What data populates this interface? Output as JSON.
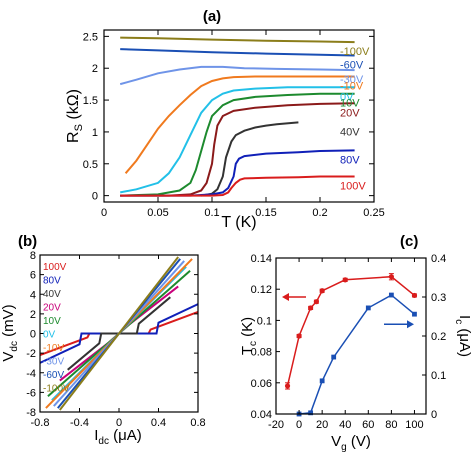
{
  "chart_data": [
    {
      "panel_label": "(a)",
      "type": "line",
      "xlabel": "T (K)",
      "ylabel": "R",
      "ylabel_sub": "S",
      "ylabel_unit": " (kΩ)",
      "xlim": [
        0,
        0.25
      ],
      "ylim": [
        -0.1,
        2.6
      ],
      "xticks": [
        "0",
        "0.05",
        "0.1",
        "0.15",
        "0.2",
        "0.25"
      ],
      "xtick_values": [
        0,
        0.05,
        0.1,
        0.15,
        0.2,
        0.25
      ],
      "yticks": [
        "0",
        "0.5",
        "1",
        "1.5",
        "2",
        "2.5"
      ],
      "ytick_values": [
        0,
        0.5,
        1,
        1.5,
        2,
        2.5
      ],
      "series": [
        {
          "name": "-100V",
          "color": "#8B7D1A",
          "x": [
            0.015,
            0.05,
            0.1,
            0.15,
            0.2,
            0.232
          ],
          "y": [
            2.48,
            2.47,
            2.45,
            2.43,
            2.42,
            2.41
          ]
        },
        {
          "name": "-60V",
          "color": "#1a4fb4",
          "x": [
            0.015,
            0.05,
            0.1,
            0.15,
            0.2,
            0.232
          ],
          "y": [
            2.3,
            2.28,
            2.25,
            2.23,
            2.21,
            2.2
          ]
        },
        {
          "name": "-30V",
          "color": "#6f94e8",
          "x": [
            0.015,
            0.03,
            0.05,
            0.07,
            0.09,
            0.11,
            0.13,
            0.16,
            0.2,
            0.232
          ],
          "y": [
            1.75,
            1.82,
            1.92,
            1.98,
            2.02,
            2.02,
            2.0,
            1.99,
            1.98,
            1.97
          ]
        },
        {
          "name": "-10V",
          "color": "#f07a1e",
          "x": [
            0.02,
            0.03,
            0.04,
            0.05,
            0.06,
            0.07,
            0.08,
            0.09,
            0.1,
            0.11,
            0.12,
            0.14,
            0.17,
            0.2,
            0.232
          ],
          "y": [
            0.35,
            0.55,
            0.8,
            1.05,
            1.25,
            1.42,
            1.58,
            1.72,
            1.8,
            1.84,
            1.86,
            1.87,
            1.87,
            1.87,
            1.87
          ]
        },
        {
          "name": "0V",
          "color": "#22c0e8",
          "x": [
            0.015,
            0.03,
            0.05,
            0.06,
            0.07,
            0.08,
            0.09,
            0.1,
            0.11,
            0.12,
            0.14,
            0.17,
            0.2,
            0.232
          ],
          "y": [
            0.05,
            0.1,
            0.2,
            0.35,
            0.6,
            0.95,
            1.3,
            1.5,
            1.6,
            1.65,
            1.68,
            1.7,
            1.7,
            1.7
          ]
        },
        {
          "name": "10V",
          "color": "#1d8a2e",
          "x": [
            0.015,
            0.05,
            0.07,
            0.08,
            0.085,
            0.09,
            0.095,
            0.1,
            0.11,
            0.12,
            0.14,
            0.17,
            0.2,
            0.232
          ],
          "y": [
            0.0,
            0.02,
            0.08,
            0.2,
            0.4,
            0.7,
            1.0,
            1.25,
            1.42,
            1.5,
            1.55,
            1.58,
            1.6,
            1.6
          ]
        },
        {
          "name": "20V",
          "color": "#8b1a1a",
          "x": [
            0.015,
            0.06,
            0.08,
            0.09,
            0.095,
            0.1,
            0.102,
            0.105,
            0.11,
            0.12,
            0.14,
            0.17,
            0.2,
            0.232
          ],
          "y": [
            0.0,
            0.0,
            0.02,
            0.08,
            0.2,
            0.5,
            0.8,
            1.1,
            1.25,
            1.33,
            1.38,
            1.42,
            1.44,
            1.45
          ]
        },
        {
          "name": "40V",
          "color": "#333333",
          "x": [
            0.09,
            0.1,
            0.105,
            0.11,
            0.113,
            0.118,
            0.122,
            0.13,
            0.14,
            0.15,
            0.16,
            0.18
          ],
          "y": [
            0.0,
            0.03,
            0.1,
            0.3,
            0.6,
            0.85,
            0.95,
            1.02,
            1.07,
            1.1,
            1.12,
            1.15
          ]
        },
        {
          "name": "80V",
          "color": "#1020b8",
          "x": [
            0.015,
            0.08,
            0.1,
            0.11,
            0.115,
            0.12,
            0.122,
            0.125,
            0.13,
            0.15,
            0.18,
            0.2,
            0.232
          ],
          "y": [
            0.0,
            0.0,
            0.02,
            0.05,
            0.12,
            0.3,
            0.5,
            0.58,
            0.62,
            0.66,
            0.68,
            0.7,
            0.71
          ]
        },
        {
          "name": "100V",
          "color": "#d91c1c",
          "x": [
            0.015,
            0.1,
            0.11,
            0.115,
            0.118,
            0.122,
            0.126,
            0.13,
            0.15,
            0.18,
            0.2,
            0.232
          ],
          "y": [
            0.0,
            0.0,
            0.01,
            0.05,
            0.12,
            0.2,
            0.25,
            0.27,
            0.28,
            0.29,
            0.3,
            0.3
          ]
        }
      ]
    },
    {
      "panel_label": "(b)",
      "type": "line",
      "xlabel": "I",
      "xlabel_sub": "dc",
      "xlabel_unit": " (μA)",
      "ylabel": "V",
      "ylabel_sub": "dc",
      "ylabel_unit": " (mV)",
      "xlim": [
        -0.8,
        0.8
      ],
      "ylim": [
        -8,
        8
      ],
      "xticks": [
        "-0.8",
        "-0.4",
        "0",
        "0.4",
        "0.8"
      ],
      "xtick_values": [
        -0.8,
        -0.4,
        0,
        0.4,
        0.8
      ],
      "yticks": [
        "-8",
        "-6",
        "-4",
        "-2",
        "0",
        "2",
        "4",
        "6",
        "8"
      ],
      "ytick_values": [
        -8,
        -6,
        -4,
        -2,
        0,
        2,
        4,
        6,
        8
      ],
      "legend": [
        {
          "label": "100V",
          "color": "#d91c1c"
        },
        {
          "label": "80V",
          "color": "#1020b8"
        },
        {
          "label": "40V",
          "color": "#333333"
        },
        {
          "label": "20V",
          "color": "#c8007a"
        },
        {
          "label": "10V",
          "color": "#1d8a2e"
        },
        {
          "label": "0V",
          "color": "#22c0e8"
        },
        {
          "label": "-10V",
          "color": "#f07a1e"
        },
        {
          "label": "-30V",
          "color": "#6f94e8"
        },
        {
          "label": "-60V",
          "color": "#1a4fb4"
        },
        {
          "label": "-100V",
          "color": "#8B7D1A"
        }
      ],
      "series": [
        {
          "name": "100V",
          "color": "#d91c1c",
          "x": [
            -0.8,
            -0.32,
            -0.3,
            0.3,
            0.32,
            0.8
          ],
          "y": [
            -2.2,
            -0.4,
            0,
            0,
            0.4,
            2.2
          ]
        },
        {
          "name": "80V",
          "color": "#1020b8",
          "x": [
            -0.8,
            -0.4,
            -0.38,
            0.38,
            0.4,
            0.8
          ],
          "y": [
            -3.0,
            -1.1,
            0,
            0,
            1.1,
            3.0
          ]
        },
        {
          "name": "40V",
          "color": "#333333",
          "x": [
            -0.52,
            -0.2,
            -0.18,
            0.18,
            0.2,
            0.52
          ],
          "y": [
            -3.7,
            -1.0,
            0,
            0,
            1.0,
            3.7
          ]
        },
        {
          "name": "20V",
          "color": "#c8007a",
          "x": [
            -0.6,
            -0.1,
            0.1,
            0.6
          ],
          "y": [
            -4.8,
            -0.9,
            0.9,
            4.8
          ]
        },
        {
          "name": "10V",
          "color": "#1d8a2e",
          "x": [
            -0.72,
            0.72
          ],
          "y": [
            -6.4,
            6.4
          ]
        },
        {
          "name": "0V",
          "color": "#22c0e8",
          "x": [
            -0.68,
            0.68
          ],
          "y": [
            -6.8,
            6.8
          ]
        },
        {
          "name": "-10V",
          "color": "#f07a1e",
          "x": [
            -0.74,
            0.74
          ],
          "y": [
            -7.6,
            7.6
          ]
        },
        {
          "name": "-30V",
          "color": "#6f94e8",
          "x": [
            -0.66,
            0.66
          ],
          "y": [
            -7.4,
            7.4
          ]
        },
        {
          "name": "-60V",
          "color": "#1a4fb4",
          "x": [
            -0.62,
            0.62
          ],
          "y": [
            -7.6,
            7.6
          ]
        },
        {
          "name": "-100V",
          "color": "#8B7D1A",
          "x": [
            -0.6,
            0.6
          ],
          "y": [
            -7.8,
            7.8
          ]
        }
      ]
    },
    {
      "panel_label": "(c)",
      "type": "scatter",
      "xlabel": "V",
      "xlabel_sub": "g",
      "xlabel_unit": " (V)",
      "ylabel": "T",
      "ylabel_sub": "c",
      "ylabel_unit": " (K)",
      "y2label": "I",
      "y2label_sub": "c",
      "y2label_unit": " (μA)",
      "xlim": [
        -20,
        110
      ],
      "ylim": [
        0.04,
        0.14
      ],
      "y2lim": [
        0,
        0.4
      ],
      "xticks": [
        "-20",
        "0",
        "20",
        "40",
        "60",
        "80",
        "100"
      ],
      "xtick_values": [
        -20,
        0,
        20,
        40,
        60,
        80,
        100
      ],
      "yticks": [
        "0.04",
        "0.06",
        "0.08",
        "0.1",
        "0.12",
        "0.14"
      ],
      "ytick_values": [
        0.04,
        0.06,
        0.08,
        0.1,
        0.12,
        0.14
      ],
      "y2ticks": [
        "0",
        "0.1",
        "0.2",
        "0.3",
        "0.4"
      ],
      "y2tick_values": [
        0,
        0.1,
        0.2,
        0.3,
        0.4
      ],
      "series": [
        {
          "name": "Tc",
          "axis": "left",
          "color": "#d91c1c",
          "x": [
            -10,
            0,
            10,
            15,
            20,
            40,
            80,
            100
          ],
          "y": [
            0.058,
            0.09,
            0.108,
            0.112,
            0.119,
            0.126,
            0.128,
            0.116
          ],
          "err": [
            0.002,
            0.001,
            0.001,
            0.001,
            0.001,
            0.001,
            0.002,
            0.001
          ]
        },
        {
          "name": "Ic",
          "axis": "right",
          "color": "#1a4fb4",
          "x": [
            0,
            10,
            20,
            30,
            60,
            80,
            100
          ],
          "y": [
            0.0,
            0.003,
            0.085,
            0.146,
            0.272,
            0.305,
            0.256
          ]
        }
      ]
    }
  ]
}
